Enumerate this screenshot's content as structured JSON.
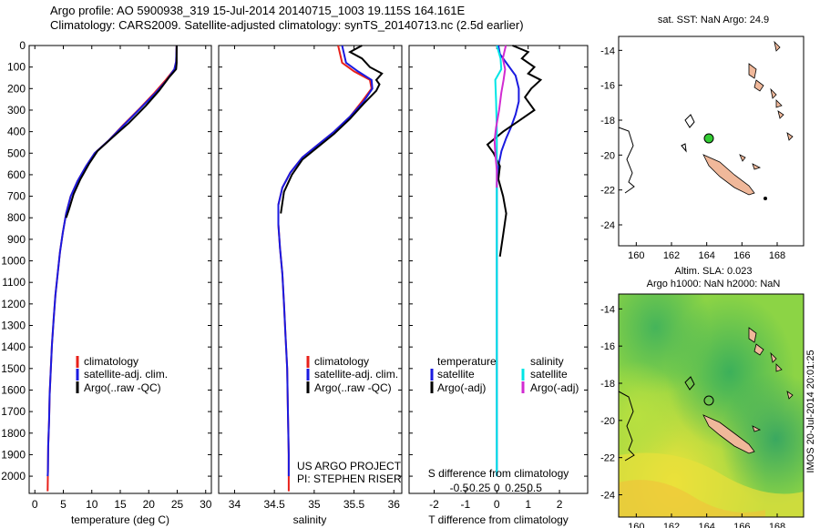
{
  "header": {
    "line1": "Argo profile: AO 5900938_319 15-Jul-2014 20140715_1003 19.115S 164.161E",
    "line2": "Climatology: CARS2009. Satellite-adjusted climatology: synTS_20140713.nc (2.5d earlier)"
  },
  "colors": {
    "climatology": "#e8201a",
    "satellite": "#1a1ae0",
    "argo": "#000000",
    "salinity_satellite": "#00e5e5",
    "salinity_argo": "#d12bd1",
    "land": "#f0b89a",
    "float_marker": "#33cc33"
  },
  "chart_data": [
    {
      "type": "line",
      "name": "temperature-profile",
      "xlabel": "temperature (deg C)",
      "ylabel": "",
      "xlim": [
        -1,
        31
      ],
      "ylim": [
        2080,
        0
      ],
      "xticks": [
        0,
        5,
        10,
        15,
        20,
        25,
        30
      ],
      "yticks": [
        0,
        100,
        200,
        300,
        400,
        500,
        600,
        700,
        800,
        900,
        1000,
        1100,
        1200,
        1300,
        1400,
        1500,
        1600,
        1700,
        1800,
        1900,
        2000
      ],
      "legend": [
        "climatology",
        "satellite-adj. clim.",
        "Argo(..raw -QC)"
      ],
      "series": [
        {
          "name": "climatology",
          "color": "#e8201a",
          "x": [
            24.9,
            24.8,
            24.5,
            23,
            21,
            18.5,
            15.5,
            13,
            10.5,
            9,
            7.5,
            6.3,
            5.5,
            4.9,
            4.4,
            4,
            3.6,
            3.3,
            3,
            2.8,
            2.6,
            2.5,
            2.35,
            2.3,
            2.25
          ],
          "y": [
            0,
            75,
            110,
            160,
            220,
            290,
            370,
            440,
            500,
            560,
            630,
            700,
            780,
            870,
            960,
            1060,
            1160,
            1270,
            1390,
            1500,
            1620,
            1740,
            1860,
            1980,
            2070
          ]
        },
        {
          "name": "satellite-adj. clim.",
          "color": "#1a1ae0",
          "x": [
            24.9,
            24.8,
            24.5,
            23.2,
            21.2,
            18.6,
            15.6,
            13,
            10.5,
            9,
            7.5,
            6.3,
            5.5,
            4.9,
            4.4,
            4,
            3.6,
            3.3,
            3,
            2.8,
            2.6,
            2.5,
            2.35,
            2.3,
            2.25
          ],
          "y": [
            0,
            75,
            110,
            160,
            220,
            290,
            370,
            440,
            500,
            560,
            630,
            700,
            780,
            870,
            960,
            1060,
            1160,
            1270,
            1390,
            1500,
            1620,
            1740,
            1860,
            1980,
            2000
          ]
        },
        {
          "name": "Argo(..raw -QC)",
          "color": "#000000",
          "x": [
            24.9,
            24.9,
            24.8,
            23.5,
            21.8,
            19.5,
            16.5,
            13.5,
            11,
            9.5,
            8,
            6.8,
            6,
            5.5
          ],
          "y": [
            0,
            80,
            110,
            150,
            210,
            280,
            360,
            430,
            490,
            550,
            620,
            690,
            760,
            800
          ]
        }
      ]
    },
    {
      "type": "line",
      "name": "salinity-profile",
      "xlabel": "salinity",
      "ylabel": "",
      "xlim": [
        33.8,
        36.1
      ],
      "ylim": [
        2080,
        0
      ],
      "xticks": [
        34,
        34.5,
        35,
        35.5,
        36
      ],
      "legend": [
        "climatology",
        "satellite-adj. clim.",
        "Argo(..raw -QC)"
      ],
      "annotation": [
        "US ARGO PROJECT",
        "PI: STEPHEN RISER"
      ],
      "series": [
        {
          "name": "climatology",
          "color": "#e8201a",
          "x": [
            35.3,
            35.35,
            35.5,
            35.7,
            35.72,
            35.6,
            35.45,
            35.25,
            35.05,
            34.85,
            34.7,
            34.6,
            34.55,
            34.55,
            34.57,
            34.6,
            34.62,
            34.64,
            34.66,
            34.67,
            34.68,
            34.68
          ],
          "y": [
            0,
            80,
            120,
            160,
            200,
            260,
            330,
            400,
            460,
            520,
            590,
            660,
            740,
            830,
            940,
            1060,
            1200,
            1350,
            1500,
            1700,
            1900,
            2070
          ]
        },
        {
          "name": "satellite-adj. clim.",
          "color": "#1a1ae0",
          "x": [
            35.35,
            35.4,
            35.55,
            35.72,
            35.73,
            35.62,
            35.45,
            35.25,
            35.05,
            34.85,
            34.7,
            34.6,
            34.55,
            34.55,
            34.57,
            34.6,
            34.62,
            34.64,
            34.66,
            34.67,
            34.68,
            34.68
          ],
          "y": [
            0,
            80,
            120,
            160,
            200,
            260,
            330,
            400,
            460,
            520,
            590,
            660,
            740,
            830,
            940,
            1060,
            1200,
            1350,
            1500,
            1700,
            1900,
            2000
          ]
        },
        {
          "name": "Argo(..raw -QC)",
          "color": "#000000",
          "x": [
            35.6,
            35.45,
            35.6,
            35.7,
            35.85,
            35.78,
            35.82,
            35.78,
            35.62,
            35.45,
            35.25,
            35.05,
            34.85,
            34.72,
            34.62,
            34.58
          ],
          "y": [
            0,
            30,
            60,
            100,
            130,
            160,
            180,
            210,
            270,
            340,
            410,
            470,
            530,
            600,
            680,
            780
          ]
        }
      ]
    },
    {
      "type": "line",
      "name": "difference-profile",
      "xlabel": "T difference from climatology",
      "xlabel2": "S difference from climatology",
      "xlim": [
        -2.8,
        2.9
      ],
      "ylim": [
        2080,
        0
      ],
      "xticks": [
        -2,
        -1,
        0,
        1,
        2
      ],
      "sticks": [
        -0.5,
        -0.25,
        0,
        0.25,
        0.5
      ],
      "stick_labels": [
        "-0.5",
        "-0.25",
        "0",
        "0.25",
        "0.5"
      ],
      "legend_temperature_title": "temperature",
      "legend_temperature": [
        "satellite",
        "Argo(-adj)"
      ],
      "legend_salinity_title": "salinity",
      "legend_salinity": [
        "satellite",
        "Argo(-adj)"
      ],
      "series": [
        {
          "name": "T satellite",
          "color": "#1a1ae0",
          "x": [
            0.05,
            0.1,
            0.3,
            0.6,
            0.7,
            0.7,
            0.6,
            0.45,
            0.3,
            0.15,
            0.05,
            0,
            0,
            0,
            0
          ],
          "y": [
            0,
            40,
            80,
            140,
            200,
            260,
            320,
            380,
            430,
            490,
            560,
            640,
            800,
            1200,
            2000
          ]
        },
        {
          "name": "T Argo(-adj)",
          "color": "#000000",
          "x": [
            0.5,
            1.0,
            0.8,
            1.2,
            1.0,
            1.4,
            1.1,
            0.9,
            1.2,
            0.7,
            0.2,
            -0.3,
            -0.1,
            0.1,
            0.05,
            0.2,
            0.3,
            0.2,
            0.1
          ],
          "y": [
            0,
            30,
            60,
            100,
            130,
            160,
            200,
            240,
            300,
            350,
            400,
            460,
            500,
            560,
            620,
            700,
            780,
            880,
            980
          ]
        },
        {
          "name": "S satellite",
          "color": "#00e5e5",
          "x": [
            0,
            0.05,
            0.06,
            -0.02,
            -0.01,
            0,
            0,
            0,
            0,
            0
          ],
          "y": [
            0,
            60,
            110,
            160,
            260,
            400,
            600,
            1000,
            1600,
            2000
          ]
        },
        {
          "name": "S Argo(-adj)",
          "color": "#d12bd1",
          "x": [
            0.12,
            0.08,
            0.11,
            0.09,
            0.06,
            0.03,
            -0.01,
            -0.03,
            -0.02,
            0,
            0
          ],
          "y": [
            0,
            60,
            110,
            160,
            220,
            300,
            380,
            440,
            500,
            580,
            660
          ]
        }
      ]
    }
  ],
  "map_sst": {
    "title": "sat. SST: NaN Argo: 24.9",
    "xticks": [
      160,
      162,
      164,
      166,
      168
    ],
    "yticks": [
      -14,
      -16,
      -18,
      -20,
      -22,
      -24
    ],
    "float": {
      "lon": 164.161,
      "lat": -19.115
    }
  },
  "map_sla": {
    "title_line1": "Altim. SLA: 0.023",
    "title_line2": "Argo h1000: NaN h2000: NaN",
    "xticks": [
      160,
      162,
      164,
      166,
      168
    ],
    "yticks": [
      -14,
      -16,
      -18,
      -20,
      -22,
      -24
    ],
    "float": {
      "lon": 164.161,
      "lat": -19.115
    }
  },
  "stamp": "IMOS 20-Jul-2014 20:01:25"
}
